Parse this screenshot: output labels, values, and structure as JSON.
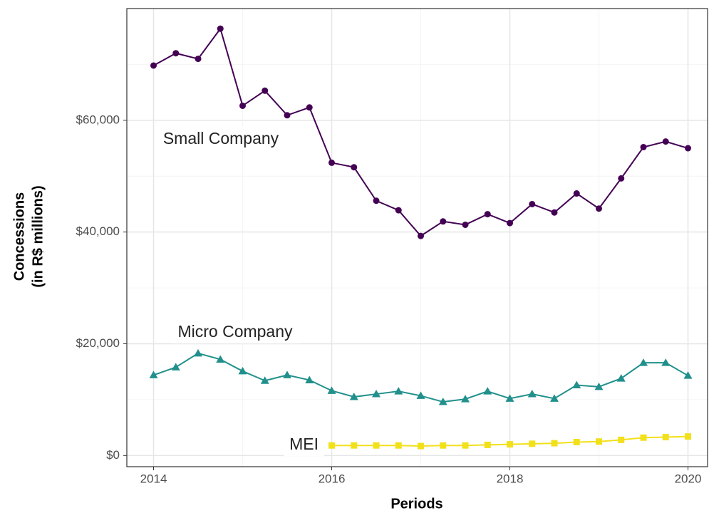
{
  "chart_data": {
    "type": "line",
    "x_label": "Periods",
    "y_label": [
      "Concessions",
      "(in R$ millions)"
    ],
    "x": [
      2014,
      2014.25,
      2014.5,
      2014.75,
      2015,
      2015.25,
      2015.5,
      2015.75,
      2016,
      2016.25,
      2016.5,
      2016.75,
      2017,
      2017.25,
      2017.5,
      2017.75,
      2018,
      2018.25,
      2018.5,
      2018.75,
      2019,
      2019.25,
      2019.5,
      2019.75,
      2020
    ],
    "series": [
      {
        "name": "Small Company",
        "color": "#440154",
        "marker": "circle",
        "values": [
          69800,
          72000,
          71000,
          76400,
          62600,
          65300,
          60900,
          62300,
          52400,
          51600,
          45600,
          43900,
          39300,
          41900,
          41300,
          43200,
          41600,
          45000,
          43500,
          46900,
          44200,
          49600,
          55200,
          56200,
          55000
        ]
      },
      {
        "name": "Micro Company",
        "color": "#21908c",
        "marker": "triangle",
        "values": [
          14400,
          15800,
          18300,
          17200,
          15100,
          13400,
          14400,
          13500,
          11600,
          10500,
          11000,
          11500,
          10700,
          9600,
          10100,
          11500,
          10200,
          11000,
          10200,
          12600,
          12300,
          13800,
          16600,
          16600,
          14300
        ]
      },
      {
        "name": "MEI",
        "color": "#f2e01a",
        "marker": "square",
        "values": [
          null,
          null,
          null,
          null,
          null,
          null,
          null,
          null,
          1800,
          1800,
          1800,
          1800,
          1700,
          1800,
          1800,
          1900,
          2000,
          2100,
          2200,
          2400,
          2500,
          2800,
          3200,
          3300,
          3400
        ]
      }
    ],
    "xlim": [
      2013.7,
      2020.22
    ],
    "ylim": [
      -2000,
      80000
    ],
    "xticks": [
      2014,
      2016,
      2018,
      2020
    ],
    "x_minor_ticks": [
      2015,
      2017,
      2019
    ],
    "yticks": [
      {
        "value": 0,
        "label": "$0"
      },
      {
        "value": 20000,
        "label": "$20,000"
      },
      {
        "value": 40000,
        "label": "$40,000"
      },
      {
        "value": 60000,
        "label": "$60,000"
      }
    ],
    "y_minor_ticks": [
      10000,
      30000,
      50000,
      70000
    ],
    "grid": true
  }
}
